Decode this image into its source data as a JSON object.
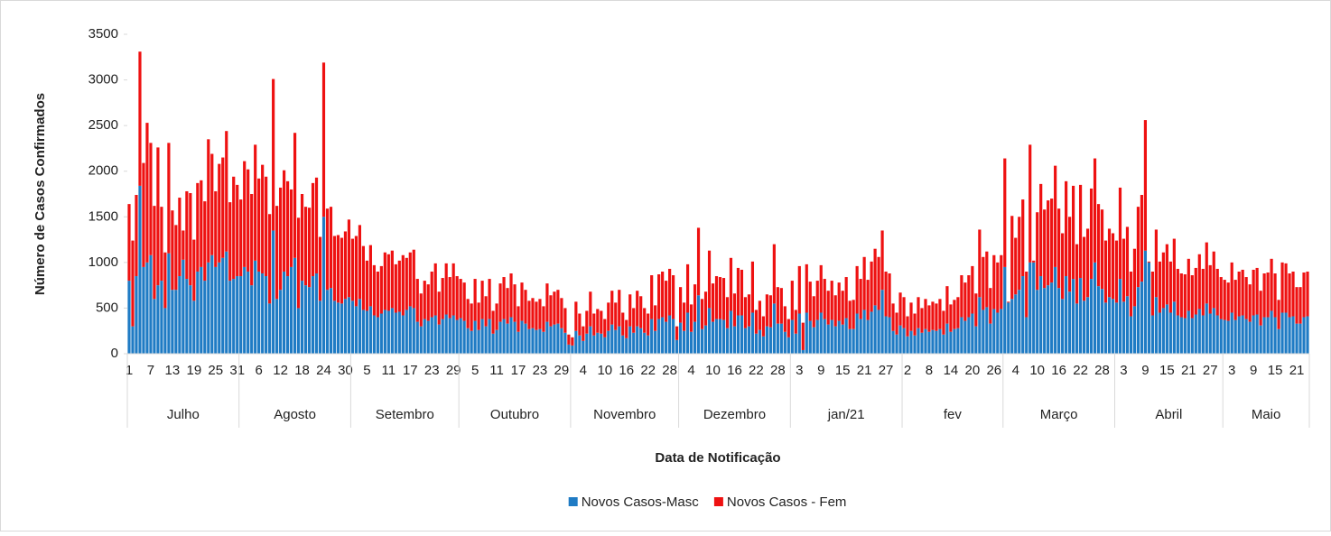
{
  "chart_data": {
    "type": "stacked_bar",
    "y_label": "Número de Casos Confirmados",
    "x_label": "Data de Notificação",
    "ylim": [
      0,
      3500
    ],
    "yticks": [
      0,
      500,
      1000,
      1500,
      2000,
      2500,
      3000,
      3500
    ],
    "legend": "bottom",
    "categories": [
      "1",
      null,
      null,
      null,
      null,
      null,
      "7",
      null,
      null,
      null,
      null,
      null,
      "13",
      null,
      null,
      null,
      null,
      null,
      "19",
      null,
      null,
      null,
      null,
      null,
      "25",
      null,
      null,
      null,
      null,
      null,
      "31",
      null,
      null,
      null,
      null,
      null,
      "6",
      null,
      null,
      null,
      null,
      null,
      "12",
      null,
      null,
      null,
      null,
      null,
      "18",
      null,
      null,
      null,
      null,
      null,
      "24",
      null,
      null,
      null,
      null,
      null,
      "30",
      null,
      null,
      null,
      null,
      null,
      "5",
      null,
      null,
      null,
      null,
      null,
      "11",
      null,
      null,
      null,
      null,
      null,
      "17",
      null,
      null,
      null,
      null,
      null,
      "23",
      null,
      null,
      null,
      null,
      null,
      "29",
      null,
      null,
      null,
      null,
      null,
      "5",
      null,
      null,
      null,
      null,
      null,
      "11",
      null,
      null,
      null,
      null,
      null,
      "17",
      null,
      null,
      null,
      null,
      null,
      "23",
      null,
      null,
      null,
      null,
      null,
      "29",
      null,
      null,
      null,
      null,
      null,
      "4",
      null,
      null,
      null,
      null,
      null,
      "10",
      null,
      null,
      null,
      null,
      null,
      "16",
      null,
      null,
      null,
      null,
      null,
      "22",
      null,
      null,
      null,
      null,
      null,
      "28",
      null,
      null,
      null,
      null,
      null,
      "4",
      null,
      null,
      null,
      null,
      null,
      "10",
      null,
      null,
      null,
      null,
      null,
      "16",
      null,
      null,
      null,
      null,
      null,
      "22",
      null,
      null,
      null,
      null,
      null,
      "28",
      null,
      null,
      null,
      null,
      null,
      "3",
      null,
      null,
      null,
      null,
      null,
      "9",
      null,
      null,
      null,
      null,
      null,
      "15",
      null,
      null,
      null,
      null,
      null,
      "21",
      null,
      null,
      null,
      null,
      null,
      "27",
      null,
      null,
      null,
      null,
      null,
      "2",
      null,
      null,
      null,
      null,
      null,
      "8",
      null,
      null,
      null,
      null,
      null,
      "14",
      null,
      null,
      null,
      null,
      null,
      "20",
      null,
      null,
      null,
      null,
      null,
      "26",
      null,
      null,
      null,
      null,
      null,
      "4",
      null,
      null,
      null,
      null,
      null,
      "10",
      null,
      null,
      null,
      null,
      null,
      "16",
      null,
      null,
      null,
      null,
      null,
      "22",
      null,
      null,
      null,
      null,
      null,
      "28",
      null,
      null,
      null,
      null,
      null,
      "3",
      null,
      null,
      null,
      null,
      null,
      "9",
      null,
      null,
      null,
      null,
      null,
      "15",
      null,
      null,
      null,
      null,
      null,
      "21",
      null,
      null,
      null,
      null,
      null,
      "27",
      null,
      null,
      null,
      null,
      null,
      "3",
      null,
      null,
      null,
      null,
      null,
      "9",
      null,
      null,
      null,
      null,
      null,
      "15",
      null,
      null,
      null,
      null,
      null,
      "21",
      null,
      null,
      null
    ],
    "groups": [
      {
        "label": "Julho",
        "size": 31
      },
      {
        "label": "Agosto",
        "size": 31
      },
      {
        "label": "Setembro",
        "size": 30
      },
      {
        "label": "Outubro",
        "size": 31
      },
      {
        "label": "Novembro",
        "size": 30
      },
      {
        "label": "Dezembro",
        "size": 31
      },
      {
        "label": "jan/21",
        "size": 31
      },
      {
        "label": "fev",
        "size": 28
      },
      {
        "label": "Março",
        "size": 31
      },
      {
        "label": "Abril",
        "size": 30
      },
      {
        "label": "Maio",
        "size": 24
      }
    ],
    "series": [
      {
        "name": "Novos Casos-Masc",
        "color": "#1f7bc4",
        "values": [
          800,
          300,
          850,
          1840,
          950,
          1000,
          1080,
          600,
          750,
          800,
          500,
          1100,
          700,
          700,
          850,
          1030,
          820,
          750,
          580,
          900,
          950,
          800,
          1000,
          1080,
          950,
          1000,
          1050,
          1120,
          800,
          820,
          850,
          850,
          950,
          900,
          750,
          1020,
          900,
          880,
          850,
          550,
          1350,
          600,
          700,
          900,
          850,
          950,
          1050,
          500,
          800,
          750,
          730,
          850,
          880,
          580,
          1500,
          700,
          720,
          580,
          560,
          550,
          600,
          620,
          580,
          520,
          600,
          480,
          470,
          520,
          420,
          400,
          440,
          480,
          470,
          500,
          450,
          460,
          420,
          480,
          520,
          500,
          350,
          300,
          380,
          360,
          400,
          420,
          320,
          380,
          430,
          390,
          420,
          370,
          390,
          360,
          280,
          250,
          360,
          260,
          380,
          300,
          380,
          220,
          260,
          350,
          380,
          330,
          400,
          350,
          240,
          360,
          330,
          270,
          280,
          260,
          270,
          240,
          350,
          300,
          320,
          330,
          280,
          230,
          100,
          90,
          250,
          200,
          140,
          220,
          300,
          200,
          230,
          220,
          180,
          250,
          320,
          260,
          300,
          200,
          170,
          300,
          230,
          300,
          280,
          230,
          200,
          380,
          250,
          380,
          400,
          350,
          420,
          380,
          150,
          340,
          250,
          450,
          240,
          350,
          640,
          270,
          310,
          500,
          350,
          380,
          380,
          370,
          280,
          470,
          300,
          420,
          420,
          280,
          300,
          450,
          220,
          260,
          190,
          300,
          290,
          550,
          330,
          330,
          240,
          180,
          370,
          220,
          440,
          40,
          450,
          360,
          290,
          370,
          450,
          380,
          320,
          370,
          300,
          360,
          320,
          390,
          270,
          270,
          440,
          380,
          480,
          370,
          460,
          530,
          480,
          700,
          410,
          400,
          250,
          210,
          310,
          280,
          190,
          250,
          200,
          280,
          230,
          270,
          240,
          260,
          250,
          270,
          210,
          330,
          240,
          270,
          280,
          400,
          360,
          400,
          440,
          300,
          620,
          480,
          510,
          330,
          490,
          450,
          490,
          950,
          560,
          600,
          650,
          700,
          850,
          400,
          1000,
          1000,
          700,
          850,
          720,
          750,
          780,
          950,
          720,
          600,
          850,
          680,
          820,
          550,
          830,
          580,
          620,
          820,
          1000,
          740,
          710,
          560,
          620,
          600,
          560,
          820,
          570,
          630,
          410,
          520,
          730,
          790,
          1130,
          1000,
          420,
          620,
          450,
          500,
          540,
          450,
          570,
          420,
          400,
          390,
          470,
          390,
          430,
          490,
          420,
          550,
          440,
          500,
          420,
          380,
          370,
          360,
          450,
          370,
          410,
          420,
          380,
          350,
          420,
          430,
          310,
          400,
          400,
          470,
          400,
          270,
          450,
          450,
          400,
          410,
          330,
          330,
          400,
          410
        ]
      },
      {
        "name": "Novos Casos - Fem",
        "color": "#ee1111",
        "values": [
          840,
          940,
          890,
          1470,
          1140,
          1530,
          1230,
          1020,
          1510,
          810,
          610,
          1210,
          870,
          710,
          860,
          320,
          960,
          1010,
          670,
          970,
          950,
          870,
          1350,
          1110,
          830,
          1080,
          1100,
          1320,
          860,
          1120,
          1000,
          840,
          1160,
          1120,
          1000,
          1270,
          1020,
          1190,
          1090,
          980,
          1660,
          1020,
          1120,
          1110,
          1040,
          850,
          1370,
          990,
          950,
          860,
          870,
          1020,
          1050,
          700,
          1690,
          890,
          890,
          710,
          740,
          720,
          740,
          850,
          680,
          770,
          810,
          700,
          550,
          670,
          550,
          500,
          520,
          630,
          620,
          630,
          530,
          560,
          660,
          570,
          590,
          640,
          470,
          360,
          420,
          400,
          500,
          570,
          360,
          450,
          560,
          450,
          570,
          480,
          430,
          420,
          320,
          300,
          460,
          300,
          420,
          330,
          440,
          250,
          290,
          420,
          460,
          390,
          480,
          410,
          280,
          420,
          370,
          310,
          330,
          310,
          330,
          280,
          420,
          340,
          360,
          370,
          330,
          270,
          110,
          90,
          320,
          240,
          160,
          250,
          380,
          240,
          260,
          250,
          200,
          310,
          370,
          300,
          400,
          250,
          200,
          350,
          270,
          390,
          350,
          270,
          240,
          480,
          280,
          490,
          500,
          450,
          510,
          480,
          150,
          390,
          310,
          530,
          300,
          410,
          740,
          330,
          370,
          630,
          420,
          470,
          460,
          460,
          340,
          580,
          360,
          520,
          500,
          340,
          350,
          560,
          260,
          320,
          220,
          350,
          350,
          650,
          400,
          390,
          280,
          200,
          430,
          260,
          520,
          300,
          530,
          430,
          340,
          430,
          520,
          440,
          370,
          430,
          340,
          420,
          370,
          450,
          310,
          320,
          520,
          440,
          580,
          440,
          550,
          620,
          580,
          650,
          490,
          480,
          300,
          240,
          360,
          340,
          220,
          310,
          240,
          340,
          270,
          330,
          290,
          310,
          300,
          330,
          260,
          410,
          300,
          320,
          340,
          460,
          420,
          460,
          520,
          360,
          740,
          580,
          610,
          390,
          590,
          550,
          590,
          1190,
          10,
          910,
          620,
          800,
          840,
          500,
          1290,
          20,
          850,
          1010,
          860,
          930,
          920,
          1110,
          870,
          720,
          1040,
          820,
          1020,
          650,
          1020,
          700,
          750,
          990,
          1140,
          900,
          870,
          680,
          750,
          720,
          680,
          1000,
          690,
          760,
          490,
          630,
          880,
          950,
          1430,
          10,
          480,
          740,
          560,
          610,
          660,
          560,
          690,
          510,
          480,
          480,
          570,
          470,
          510,
          600,
          510,
          670,
          530,
          620,
          510,
          460,
          440,
          420,
          550,
          440,
          490,
          500,
          460,
          410,
          500,
          510,
          380,
          480,
          490,
          570,
          480,
          320,
          550,
          540,
          480,
          490,
          400,
          400,
          490,
          490
        ]
      }
    ]
  }
}
